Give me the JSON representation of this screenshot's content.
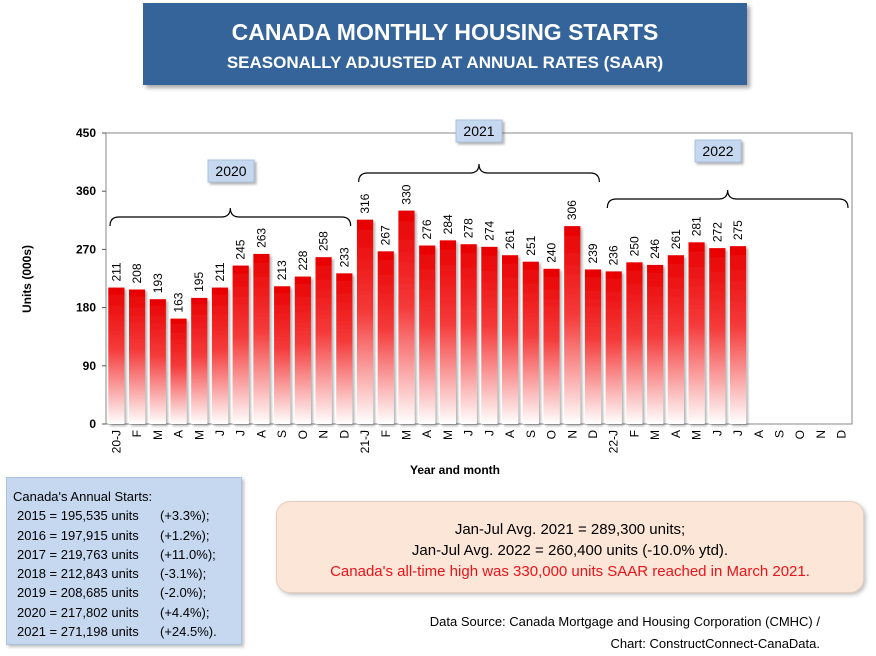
{
  "title": "CANADA MONTHLY HOUSING STARTS",
  "subtitle": "SEASONALLY ADJUSTED AT ANNUAL RATES (SAAR)",
  "chart_data": {
    "type": "bar",
    "ylabel": "Units (000s)",
    "xlabel": "Year and month",
    "ylim": [
      0,
      450
    ],
    "yticks": [
      "0",
      "90",
      "180",
      "270",
      "360",
      "450"
    ],
    "categories": [
      "20-J",
      "F",
      "M",
      "A",
      "M",
      "J",
      "J",
      "A",
      "S",
      "O",
      "N",
      "D",
      "21-J",
      "F",
      "M",
      "A",
      "M",
      "J",
      "J",
      "A",
      "S",
      "O",
      "N",
      "D",
      "22-J",
      "F",
      "M",
      "A",
      "M",
      "J",
      "J",
      "A",
      "S",
      "O",
      "N",
      "D"
    ],
    "values": [
      211,
      208,
      193,
      163,
      195,
      211,
      245,
      263,
      213,
      228,
      258,
      233,
      316,
      267,
      330,
      276,
      284,
      278,
      274,
      261,
      251,
      240,
      306,
      239,
      236,
      250,
      246,
      261,
      281,
      272,
      275,
      null,
      null,
      null,
      null,
      null
    ],
    "year_groups": [
      {
        "label": "2020",
        "start": 0,
        "end": 11
      },
      {
        "label": "2021",
        "start": 12,
        "end": 23
      },
      {
        "label": "2022",
        "start": 24,
        "end": 35
      }
    ],
    "bar_color": "#ee0000"
  },
  "annual": {
    "heading": "Canada's Annual Starts:",
    "rows": [
      {
        "year": "2015 = 195,535 units",
        "change": "(+3.3%);"
      },
      {
        "year": "2016 = 197,915 units",
        "change": "(+1.2%);"
      },
      {
        "year": "2017 = 219,763 units",
        "change": "(+11.0%);"
      },
      {
        "year": "2018 = 212,843 units",
        "change": "(-3.1%);"
      },
      {
        "year": "2019 = 208,685 units",
        "change": "(-2.0%);"
      },
      {
        "year": "2020 = 217,802 units",
        "change": "(+4.4%);"
      },
      {
        "year": "2021 = 271,198 units",
        "change": "(+24.5%)."
      }
    ]
  },
  "summary": {
    "line1": "Jan-Jul Avg. 2021 = 289,300 units;",
    "line2": "Jan-Jul Avg. 2022 = 260,400 units (-10.0% ytd).",
    "line3": "Canada's all-time high was 330,000 units SAAR reached in March 2021."
  },
  "source": {
    "line1": "Data Source:  Canada Mortgage and Housing Corporation (CMHC) /",
    "line2": "Chart: ConstructConnect-CanaData."
  }
}
